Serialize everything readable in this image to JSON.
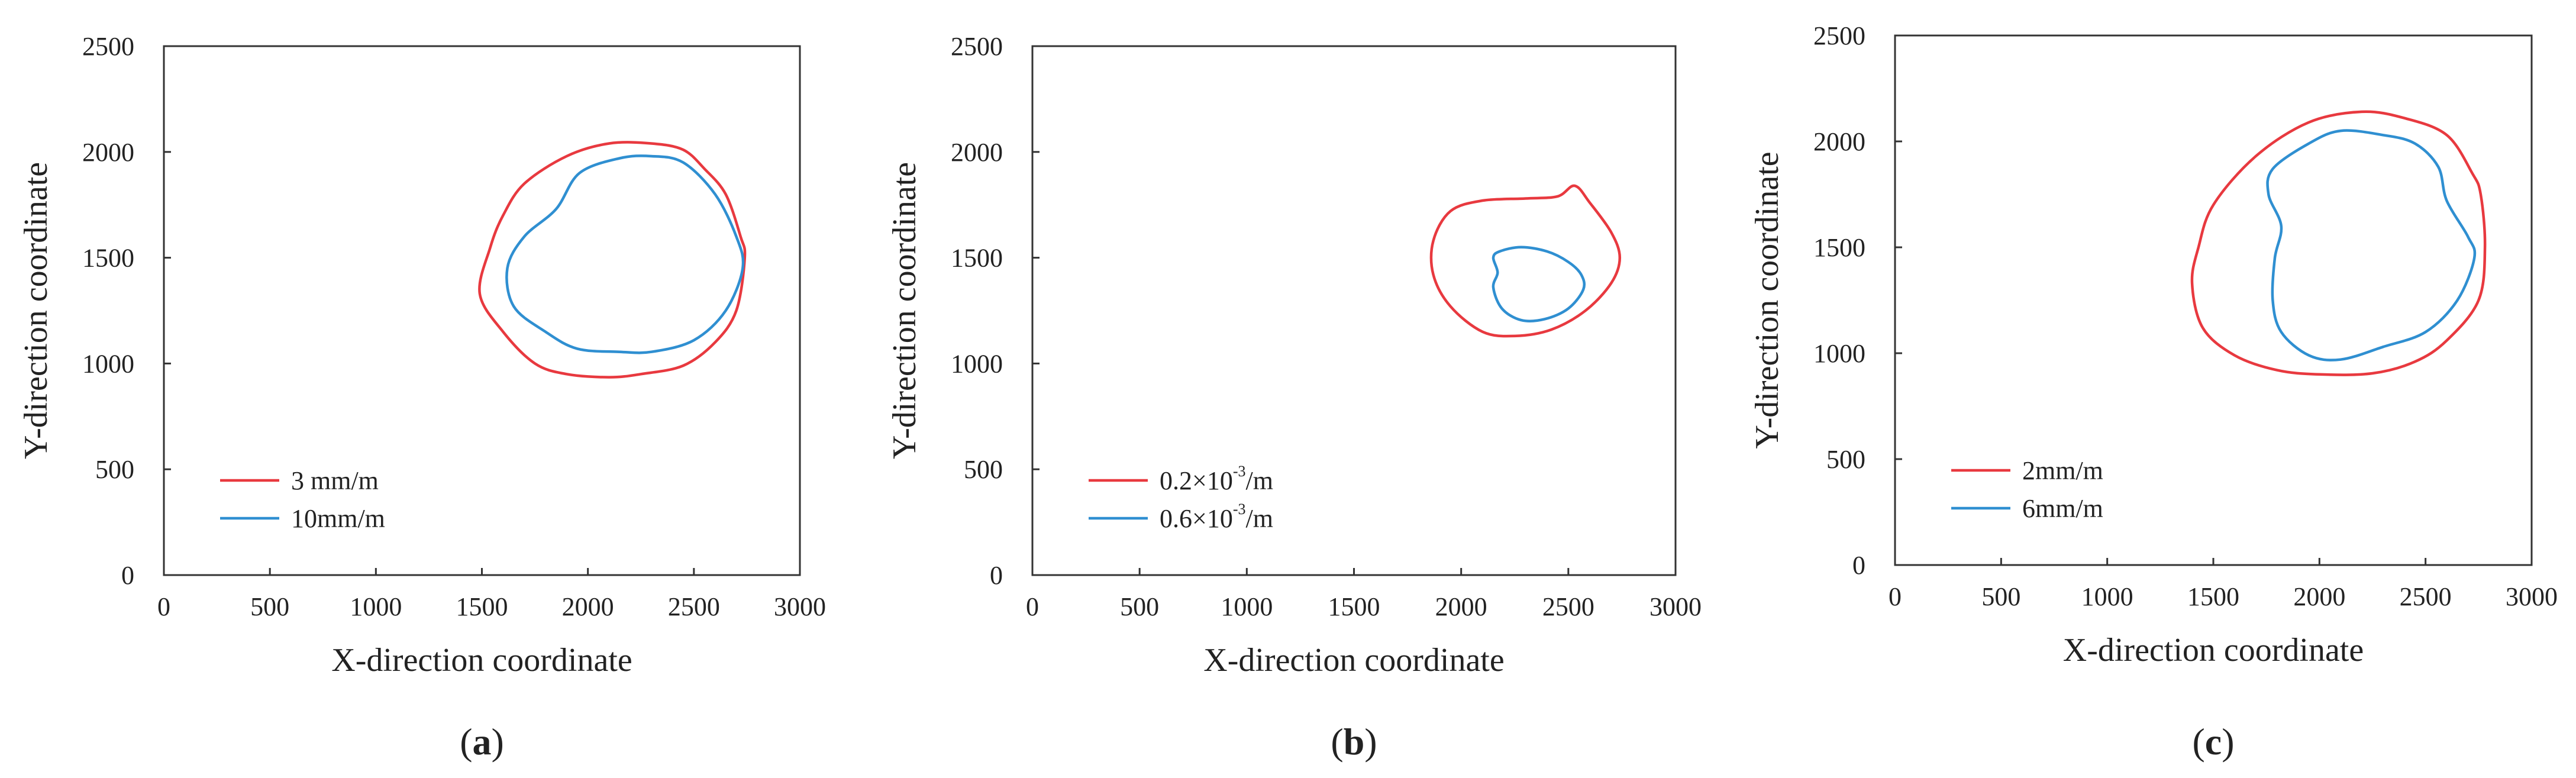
{
  "chart_data": [
    {
      "type": "line",
      "panel_label": "a",
      "xlabel": "X-direction coordinate",
      "ylabel": "Y-direction coordinate",
      "xlim": [
        0,
        3000
      ],
      "ylim": [
        0,
        2500
      ],
      "xticks": [
        "0",
        "500",
        "1000",
        "1500",
        "2000",
        "2500",
        "3000"
      ],
      "yticks": [
        "0",
        "500",
        "1000",
        "1500",
        "2000",
        "2500"
      ],
      "grid": false,
      "legend_position": "bottom-left",
      "series": [
        {
          "name": "3 mm/m",
          "label_parts": [
            {
              "t": "3 mm/m",
              "sup": false
            }
          ],
          "color": "#e8393f",
          "closed": true,
          "points": [
            [
              1700,
              1850
            ],
            [
              1900,
              1980
            ],
            [
              2100,
              2040
            ],
            [
              2300,
              2040
            ],
            [
              2450,
              2010
            ],
            [
              2550,
              1920
            ],
            [
              2650,
              1800
            ],
            [
              2720,
              1600
            ],
            [
              2740,
              1500
            ],
            [
              2700,
              1250
            ],
            [
              2600,
              1100
            ],
            [
              2450,
              990
            ],
            [
              2250,
              950
            ],
            [
              2100,
              935
            ],
            [
              1900,
              950
            ],
            [
              1750,
              1000
            ],
            [
              1600,
              1150
            ],
            [
              1490,
              1330
            ],
            [
              1540,
              1550
            ],
            [
              1600,
              1700
            ]
          ]
        },
        {
          "name": "10mm/m",
          "label_parts": [
            {
              "t": "10mm/m",
              "sup": false
            }
          ],
          "color": "#2f8fd1",
          "closed": true,
          "points": [
            [
              1850,
              1730
            ],
            [
              1960,
              1900
            ],
            [
              2150,
              1970
            ],
            [
              2300,
              1980
            ],
            [
              2450,
              1950
            ],
            [
              2600,
              1800
            ],
            [
              2700,
              1600
            ],
            [
              2730,
              1450
            ],
            [
              2650,
              1250
            ],
            [
              2500,
              1110
            ],
            [
              2300,
              1055
            ],
            [
              2150,
              1055
            ],
            [
              1950,
              1070
            ],
            [
              1800,
              1150
            ],
            [
              1650,
              1270
            ],
            [
              1620,
              1450
            ],
            [
              1700,
              1600
            ]
          ]
        }
      ]
    },
    {
      "type": "line",
      "panel_label": "b",
      "xlabel": "X-direction coordinate",
      "ylabel": "Y-direction coordinate",
      "xlim": [
        0,
        3000
      ],
      "ylim": [
        0,
        2500
      ],
      "xticks": [
        "0",
        "500",
        "1000",
        "1500",
        "2000",
        "2500",
        "3000"
      ],
      "yticks": [
        "0",
        "500",
        "1000",
        "1500",
        "2000",
        "2500"
      ],
      "grid": false,
      "legend_position": "bottom-left",
      "series": [
        {
          "name": "0.2×10-3/m",
          "label_parts": [
            {
              "t": "0.2×10",
              "sup": false
            },
            {
              "t": "-3",
              "sup": true
            },
            {
              "t": "/m",
              "sup": false
            }
          ],
          "color": "#e8393f",
          "closed": true,
          "points": [
            [
              1950,
              1720
            ],
            [
              2100,
              1770
            ],
            [
              2300,
              1780
            ],
            [
              2450,
              1790
            ],
            [
              2530,
              1840
            ],
            [
              2600,
              1760
            ],
            [
              2700,
              1620
            ],
            [
              2740,
              1500
            ],
            [
              2700,
              1380
            ],
            [
              2580,
              1250
            ],
            [
              2420,
              1160
            ],
            [
              2250,
              1130
            ],
            [
              2100,
              1150
            ],
            [
              1950,
              1270
            ],
            [
              1870,
              1420
            ],
            [
              1870,
              1580
            ]
          ]
        },
        {
          "name": "0.6×10-3/m",
          "label_parts": [
            {
              "t": "0.6×10",
              "sup": false
            },
            {
              "t": "-3",
              "sup": true
            },
            {
              "t": "/m",
              "sup": false
            }
          ],
          "color": "#2f8fd1",
          "closed": true,
          "points": [
            [
              2180,
              1530
            ],
            [
              2280,
              1550
            ],
            [
              2400,
              1530
            ],
            [
              2500,
              1480
            ],
            [
              2560,
              1420
            ],
            [
              2570,
              1350
            ],
            [
              2500,
              1260
            ],
            [
              2390,
              1210
            ],
            [
              2280,
              1205
            ],
            [
              2190,
              1260
            ],
            [
              2150,
              1360
            ],
            [
              2170,
              1430
            ],
            [
              2150,
              1500
            ]
          ]
        }
      ]
    },
    {
      "type": "line",
      "panel_label": "c",
      "xlabel": "X-direction coordinate",
      "ylabel": "Y-direction coordinate",
      "xlim": [
        0,
        3000
      ],
      "ylim": [
        0,
        2500
      ],
      "xticks": [
        "0",
        "500",
        "1000",
        "1500",
        "2000",
        "2500",
        "3000"
      ],
      "yticks": [
        "0",
        "500",
        "1000",
        "1500",
        "2000",
        "2500"
      ],
      "grid": false,
      "legend_position": "bottom-left",
      "series": [
        {
          "name": "2mm/m",
          "label_parts": [
            {
              "t": "2mm/m",
              "sup": false
            }
          ],
          "color": "#e8393f",
          "closed": true,
          "points": [
            [
              1500,
              1700
            ],
            [
              1700,
              1930
            ],
            [
              1950,
              2090
            ],
            [
              2200,
              2140
            ],
            [
              2400,
              2110
            ],
            [
              2600,
              2030
            ],
            [
              2720,
              1850
            ],
            [
              2760,
              1750
            ],
            [
              2780,
              1500
            ],
            [
              2750,
              1250
            ],
            [
              2600,
              1060
            ],
            [
              2450,
              960
            ],
            [
              2250,
              905
            ],
            [
              2000,
              900
            ],
            [
              1800,
              920
            ],
            [
              1600,
              990
            ],
            [
              1450,
              1120
            ],
            [
              1400,
              1330
            ],
            [
              1430,
              1500
            ]
          ]
        },
        {
          "name": "6mm/m",
          "label_parts": [
            {
              "t": "6mm/m",
              "sup": false
            }
          ],
          "color": "#2f8fd1",
          "closed": true,
          "points": [
            [
              1780,
              1870
            ],
            [
              1950,
              1990
            ],
            [
              2100,
              2050
            ],
            [
              2300,
              2030
            ],
            [
              2450,
              1990
            ],
            [
              2560,
              1880
            ],
            [
              2600,
              1720
            ],
            [
              2700,
              1550
            ],
            [
              2730,
              1450
            ],
            [
              2650,
              1250
            ],
            [
              2500,
              1100
            ],
            [
              2300,
              1030
            ],
            [
              2100,
              970
            ],
            [
              1950,
              990
            ],
            [
              1820,
              1100
            ],
            [
              1780,
              1250
            ],
            [
              1790,
              1450
            ],
            [
              1820,
              1600
            ],
            [
              1760,
              1750
            ]
          ]
        }
      ]
    }
  ]
}
